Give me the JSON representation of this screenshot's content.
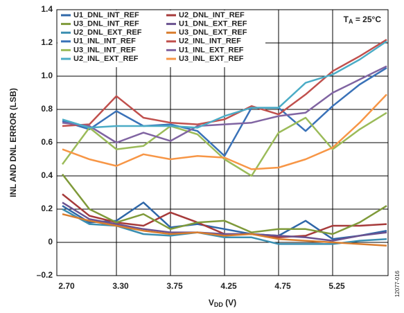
{
  "chart_data": {
    "type": "line",
    "y_label": "INL AND DNL ERROR (LSB)",
    "x_label": {
      "main": "V",
      "sub": "DD",
      "rest": " (V)"
    },
    "annotation": {
      "main": "T",
      "sub": "A",
      "rest": " = 25°C"
    },
    "figure_code": "12077-016",
    "categories": [
      "2.70",
      null,
      "3.30",
      null,
      "3.75",
      null,
      "4.25",
      null,
      "4.75",
      null,
      "5.25",
      null,
      null
    ],
    "ylim": [
      -0.2,
      1.4
    ],
    "yticks": [
      {
        "value": -0.2,
        "label": "–0.2"
      },
      0,
      0.2,
      0.4,
      0.6,
      0.8,
      {
        "value": 1,
        "label": "1.0"
      },
      1.2,
      1.4
    ],
    "grid": true,
    "legend": "top-left",
    "series": [
      {
        "name": "U1_DNL_INT_REF",
        "color": "#2f67a8",
        "values": [
          0.22,
          0.12,
          0.13,
          0.24,
          0.09,
          0.11,
          0.08,
          0.05,
          0.04,
          0.13,
          0.02,
          0.04,
          0.07
        ]
      },
      {
        "name": "U2_DNL_INT_REF",
        "color": "#a63a3a",
        "values": [
          0.29,
          0.16,
          0.12,
          0.1,
          0.18,
          0.12,
          0.05,
          0.05,
          0.03,
          0.04,
          0.1,
          0.1,
          0.11
        ]
      },
      {
        "name": "U3_DNL_INT_REF",
        "color": "#7f9a3a",
        "values": [
          0.41,
          0.2,
          0.12,
          0.17,
          0.08,
          0.12,
          0.13,
          0.06,
          0.08,
          0.08,
          0.05,
          0.12,
          0.22
        ]
      },
      {
        "name": "U1_DNL_EXT_REF",
        "color": "#6a5290",
        "values": [
          0.24,
          0.14,
          0.11,
          0.08,
          0.06,
          0.06,
          0.05,
          0.05,
          0.04,
          0.03,
          0.01,
          0.04,
          0.06
        ]
      },
      {
        "name": "U2_DNL_EXT_REF",
        "color": "#3a8eb0",
        "values": [
          0.2,
          0.11,
          0.1,
          0.05,
          0.04,
          0.06,
          0.03,
          0.03,
          -0.01,
          -0.01,
          -0.01,
          0.01,
          0.02
        ]
      },
      {
        "name": "U3_DNL_EXT_REF",
        "color": "#d97d2e",
        "values": [
          0.17,
          0.13,
          0.1,
          0.07,
          0.05,
          0.06,
          0.04,
          0.05,
          0.02,
          0.01,
          0.0,
          -0.01,
          -0.02
        ]
      },
      {
        "name": "U1_INL_INT_REF",
        "color": "#3a72b8",
        "values": [
          0.73,
          0.68,
          0.79,
          0.7,
          0.71,
          0.67,
          0.52,
          0.81,
          0.81,
          0.67,
          0.82,
          0.95,
          1.05
        ]
      },
      {
        "name": "U2_INL_INT_REF",
        "color": "#c0504d",
        "values": [
          0.7,
          0.71,
          0.88,
          0.75,
          0.72,
          0.71,
          0.74,
          0.82,
          0.77,
          0.89,
          1.03,
          1.12,
          1.22
        ]
      },
      {
        "name": "U3_INL_INT_REF",
        "color": "#9bbb59",
        "values": [
          0.47,
          0.69,
          0.56,
          0.58,
          0.7,
          0.65,
          0.5,
          0.4,
          0.66,
          0.75,
          0.56,
          0.68,
          0.78
        ]
      },
      {
        "name": "U1_INL_EXT_REF",
        "color": "#8064a2",
        "values": [
          0.72,
          0.7,
          0.6,
          0.66,
          0.61,
          0.7,
          0.71,
          0.72,
          0.76,
          0.78,
          0.9,
          0.98,
          1.06
        ]
      },
      {
        "name": "U2_INL_EXT_REF",
        "color": "#4bacc6",
        "values": [
          0.74,
          0.69,
          0.7,
          0.7,
          0.7,
          0.69,
          0.76,
          0.81,
          0.81,
          0.96,
          1.01,
          1.1,
          1.21
        ]
      },
      {
        "name": "U3_INL_EXT_REF",
        "color": "#f79646",
        "values": [
          0.56,
          0.5,
          0.46,
          0.53,
          0.5,
          0.52,
          0.51,
          0.44,
          0.45,
          0.5,
          0.57,
          0.72,
          0.89
        ]
      }
    ]
  }
}
